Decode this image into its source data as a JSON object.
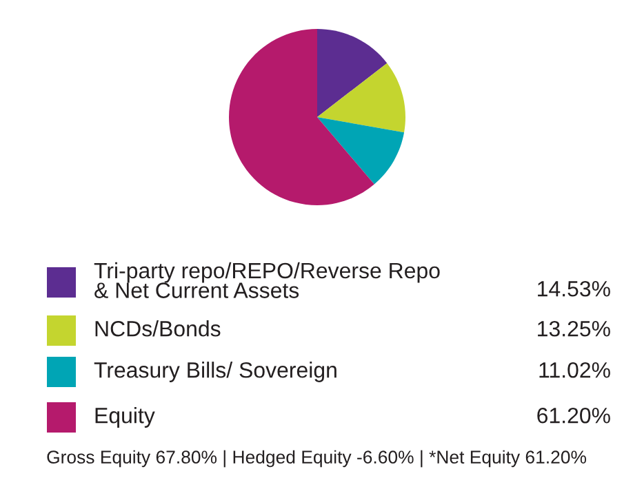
{
  "chart_data": {
    "type": "pie",
    "categories": [
      "Tri-party repo/REPO/Reverse Repo\n& Net Current Assets",
      "NCDs/Bonds",
      "Treasury Bills/ Sovereign",
      "Equity"
    ],
    "values": [
      14.53,
      13.25,
      11.02,
      61.2
    ],
    "colors": [
      "#5c2d91",
      "#c4d52f",
      "#00a5b5",
      "#b51a6c"
    ],
    "value_labels": [
      "14.53%",
      "13.25%",
      "11.02%",
      "61.20%"
    ],
    "legend": "bottom",
    "annotations": [
      "Gross Equity 67.80% | Hedged Equity -6.60% | *Net Equity 61.20%"
    ]
  }
}
